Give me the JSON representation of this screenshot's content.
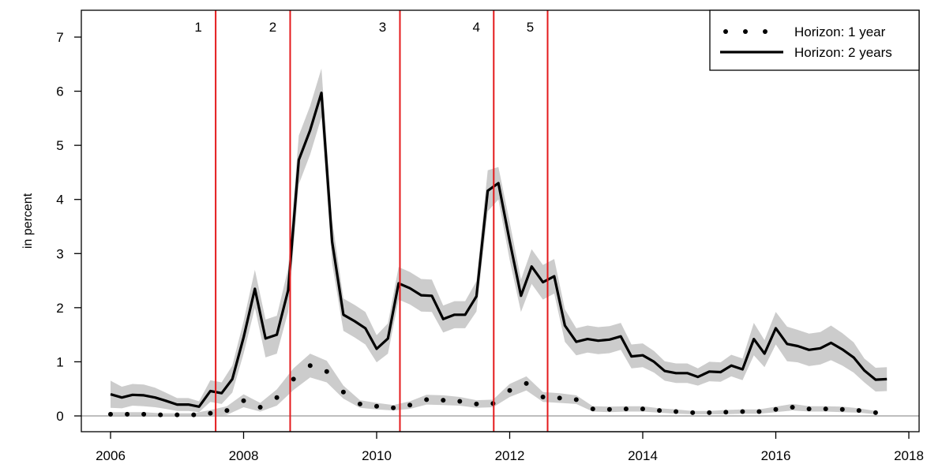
{
  "chart_data": {
    "type": "line",
    "ylabel": "in percent",
    "xlim": [
      2006,
      2018
    ],
    "ylim": [
      0,
      7
    ],
    "x_ticks": [
      2006,
      2008,
      2010,
      2012,
      2014,
      2016,
      2018
    ],
    "y_ticks": [
      0,
      1,
      2,
      3,
      4,
      5,
      6,
      7
    ],
    "legend_position": "top-right",
    "zero_line_color": "#bebebe",
    "band_color": "#cccccc",
    "series": [
      {
        "name": "Horizon: 1 year",
        "style": "dotted",
        "color": "#000000",
        "x": [
          2006.0,
          2006.25,
          2006.5,
          2006.75,
          2007.0,
          2007.25,
          2007.5,
          2007.75,
          2008.0,
          2008.25,
          2008.5,
          2008.75,
          2009.0,
          2009.25,
          2009.5,
          2009.75,
          2010.0,
          2010.25,
          2010.5,
          2010.75,
          2011.0,
          2011.25,
          2011.5,
          2011.75,
          2012.0,
          2012.25,
          2012.5,
          2012.75,
          2013.0,
          2013.25,
          2013.5,
          2013.75,
          2014.0,
          2014.25,
          2014.5,
          2014.75,
          2015.0,
          2015.25,
          2015.5,
          2015.75,
          2016.0,
          2016.25,
          2016.5,
          2016.75,
          2017.0,
          2017.25,
          2017.5
        ],
        "values": [
          0.03,
          0.03,
          0.03,
          0.02,
          0.02,
          0.02,
          0.05,
          0.1,
          0.28,
          0.16,
          0.34,
          0.68,
          0.93,
          0.82,
          0.44,
          0.22,
          0.18,
          0.15,
          0.2,
          0.3,
          0.29,
          0.27,
          0.22,
          0.23,
          0.47,
          0.6,
          0.35,
          0.33,
          0.3,
          0.13,
          0.12,
          0.13,
          0.13,
          0.1,
          0.08,
          0.06,
          0.06,
          0.07,
          0.08,
          0.08,
          0.12,
          0.16,
          0.13,
          0.13,
          0.12,
          0.1,
          0.06
        ],
        "band": [
          0.04,
          0.04,
          0.04,
          0.03,
          0.03,
          0.03,
          0.06,
          0.08,
          0.12,
          0.08,
          0.15,
          0.2,
          0.22,
          0.2,
          0.12,
          0.07,
          0.06,
          0.05,
          0.07,
          0.09,
          0.09,
          0.08,
          0.07,
          0.07,
          0.12,
          0.13,
          0.09,
          0.09,
          0.08,
          0.05,
          0.05,
          0.05,
          0.05,
          0.04,
          0.04,
          0.03,
          0.03,
          0.04,
          0.04,
          0.04,
          0.05,
          0.06,
          0.05,
          0.05,
          0.05,
          0.04,
          0.03
        ]
      },
      {
        "name": "Horizon: 2 years",
        "style": "solid",
        "color": "#000000",
        "x": [
          2006.0,
          2006.17,
          2006.33,
          2006.5,
          2006.67,
          2006.83,
          2007.0,
          2007.17,
          2007.33,
          2007.5,
          2007.67,
          2007.83,
          2008.0,
          2008.17,
          2008.33,
          2008.5,
          2008.67,
          2008.83,
          2009.0,
          2009.17,
          2009.33,
          2009.5,
          2009.67,
          2009.83,
          2010.0,
          2010.17,
          2010.33,
          2010.5,
          2010.67,
          2010.83,
          2011.0,
          2011.17,
          2011.33,
          2011.5,
          2011.67,
          2011.83,
          2012.0,
          2012.17,
          2012.33,
          2012.5,
          2012.67,
          2012.83,
          2013.0,
          2013.17,
          2013.33,
          2013.5,
          2013.67,
          2013.83,
          2014.0,
          2014.17,
          2014.33,
          2014.5,
          2014.67,
          2014.83,
          2015.0,
          2015.17,
          2015.33,
          2015.5,
          2015.67,
          2015.83,
          2016.0,
          2016.17,
          2016.33,
          2016.5,
          2016.67,
          2016.83,
          2017.0,
          2017.17,
          2017.33,
          2017.5,
          2017.67
        ],
        "values": [
          0.4,
          0.34,
          0.39,
          0.38,
          0.34,
          0.28,
          0.21,
          0.21,
          0.17,
          0.46,
          0.42,
          0.68,
          1.45,
          2.35,
          1.43,
          1.5,
          2.32,
          4.73,
          5.28,
          5.97,
          3.22,
          1.87,
          1.75,
          1.62,
          1.24,
          1.43,
          2.45,
          2.36,
          2.23,
          2.22,
          1.79,
          1.87,
          1.87,
          2.21,
          4.16,
          4.3,
          3.23,
          2.22,
          2.76,
          2.47,
          2.58,
          1.67,
          1.37,
          1.42,
          1.39,
          1.41,
          1.47,
          1.1,
          1.12,
          1.0,
          0.83,
          0.79,
          0.79,
          0.72,
          0.82,
          0.81,
          0.93,
          0.86,
          1.42,
          1.15,
          1.62,
          1.33,
          1.29,
          1.22,
          1.25,
          1.35,
          1.23,
          1.08,
          0.84,
          0.67,
          0.68
        ],
        "band": [
          0.25,
          0.2,
          0.2,
          0.2,
          0.18,
          0.15,
          0.12,
          0.12,
          0.1,
          0.2,
          0.2,
          0.25,
          0.3,
          0.35,
          0.35,
          0.35,
          0.4,
          0.45,
          0.45,
          0.45,
          0.4,
          0.3,
          0.3,
          0.3,
          0.25,
          0.28,
          0.3,
          0.3,
          0.3,
          0.3,
          0.25,
          0.25,
          0.25,
          0.28,
          0.38,
          0.3,
          0.35,
          0.3,
          0.32,
          0.32,
          0.32,
          0.3,
          0.25,
          0.25,
          0.25,
          0.25,
          0.25,
          0.22,
          0.22,
          0.2,
          0.18,
          0.18,
          0.18,
          0.16,
          0.18,
          0.18,
          0.2,
          0.2,
          0.3,
          0.25,
          0.3,
          0.32,
          0.3,
          0.3,
          0.3,
          0.32,
          0.3,
          0.28,
          0.22,
          0.22,
          0.22
        ]
      }
    ],
    "events": [
      {
        "label": "1",
        "x": 2007.58
      },
      {
        "label": "2",
        "x": 2008.7
      },
      {
        "label": "3",
        "x": 2010.35
      },
      {
        "label": "4",
        "x": 2011.76
      },
      {
        "label": "5",
        "x": 2012.57
      }
    ],
    "event_color": "#e41a1c"
  }
}
